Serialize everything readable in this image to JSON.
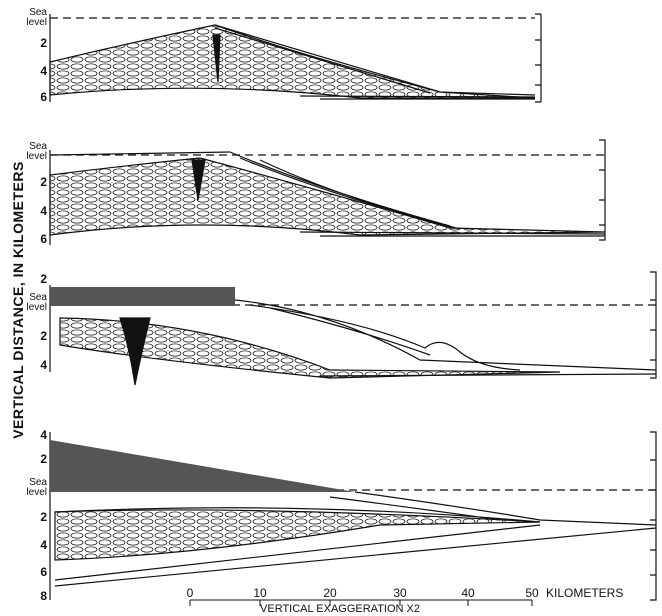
{
  "y_axis_title": "VERTICAL DISTANCE, IN KILOMETERS",
  "panels": [
    {
      "depth_labels": [
        "Sea level",
        "2",
        "4",
        "6"
      ]
    },
    {
      "depth_labels": [
        "Sea level",
        "2",
        "4",
        "6"
      ]
    },
    {
      "depth_labels": [
        "2",
        "Sea level",
        "2",
        "4"
      ]
    },
    {
      "depth_labels": [
        "4",
        "2",
        "Sea level",
        "2",
        "4",
        "6",
        "8"
      ]
    }
  ],
  "scale": {
    "ticks": [
      "0",
      "10",
      "20",
      "30",
      "40",
      "50"
    ],
    "unit": "KILOMETERS"
  },
  "note": "VERTICAL EXAGGERATION X2"
}
